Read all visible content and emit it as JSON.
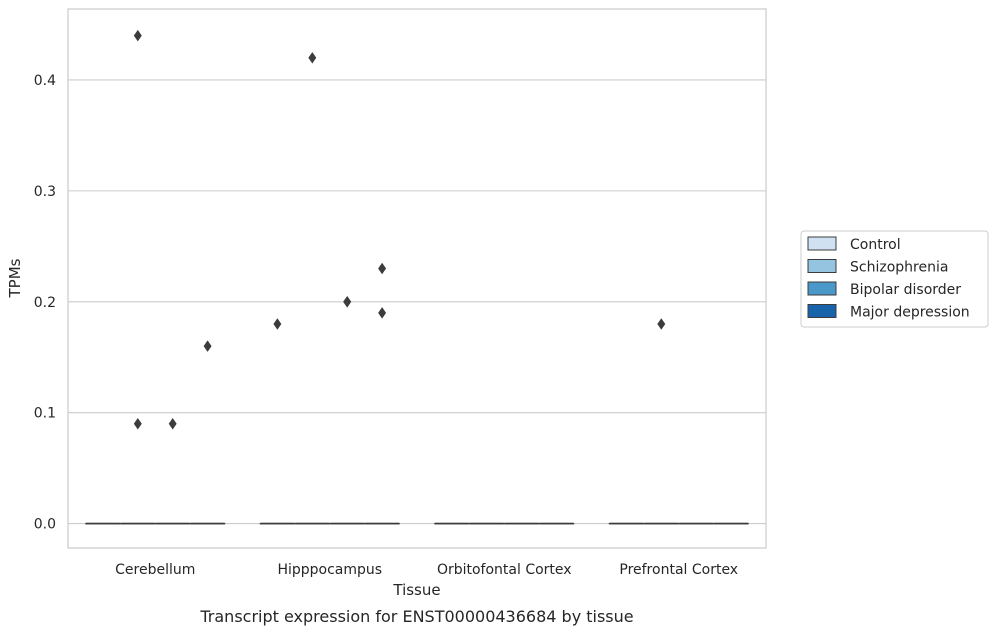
{
  "chart_data": {
    "type": "box",
    "title": "",
    "caption": "Transcript expression for ENST00000436684 by tissue",
    "xlabel": "Tissue",
    "ylabel": "TPMs",
    "ylim": [
      -0.022,
      0.464
    ],
    "yticks": [
      0.0,
      0.1,
      0.2,
      0.3,
      0.4
    ],
    "ytick_labels": [
      "0.0",
      "0.1",
      "0.2",
      "0.3",
      "0.4"
    ],
    "grid": "horizontal",
    "categories": [
      "Cerebellum",
      "Hipppocampus",
      "Orbitofontal Cortex",
      "Prefrontal Cortex"
    ],
    "legend_position": "right",
    "series": [
      {
        "name": "Control",
        "color": "#d0e1f2",
        "boxes": [
          {
            "median": 0.0,
            "q1": 0.0,
            "q3": 0.0,
            "whisker_low": 0.0,
            "whisker_high": 0.0
          },
          {
            "median": 0.0,
            "q1": 0.0,
            "q3": 0.0,
            "whisker_low": 0.0,
            "whisker_high": 0.0
          },
          {
            "median": 0.0,
            "q1": 0.0,
            "q3": 0.0,
            "whisker_low": 0.0,
            "whisker_high": 0.0
          },
          {
            "median": 0.0,
            "q1": 0.0,
            "q3": 0.0,
            "whisker_low": 0.0,
            "whisker_high": 0.0
          }
        ],
        "outliers": [
          [],
          [
            0.18
          ],
          [],
          []
        ]
      },
      {
        "name": "Schizophrenia",
        "color": "#94c4df",
        "boxes": [
          {
            "median": 0.0,
            "q1": 0.0,
            "q3": 0.0,
            "whisker_low": 0.0,
            "whisker_high": 0.0
          },
          {
            "median": 0.0,
            "q1": 0.0,
            "q3": 0.0,
            "whisker_low": 0.0,
            "whisker_high": 0.0
          },
          {
            "median": 0.0,
            "q1": 0.0,
            "q3": 0.0,
            "whisker_low": 0.0,
            "whisker_high": 0.0
          },
          {
            "median": 0.0,
            "q1": 0.0,
            "q3": 0.0,
            "whisker_low": 0.0,
            "whisker_high": 0.0
          }
        ],
        "outliers": [
          [
            0.44,
            0.09
          ],
          [
            0.42
          ],
          [],
          [
            0.18
          ]
        ]
      },
      {
        "name": "Bipolar disorder",
        "color": "#4a98c9",
        "boxes": [
          {
            "median": 0.0,
            "q1": 0.0,
            "q3": 0.0,
            "whisker_low": 0.0,
            "whisker_high": 0.0
          },
          {
            "median": 0.0,
            "q1": 0.0,
            "q3": 0.0,
            "whisker_low": 0.0,
            "whisker_high": 0.0
          },
          {
            "median": 0.0,
            "q1": 0.0,
            "q3": 0.0,
            "whisker_low": 0.0,
            "whisker_high": 0.0
          },
          {
            "median": 0.0,
            "q1": 0.0,
            "q3": 0.0,
            "whisker_low": 0.0,
            "whisker_high": 0.0
          }
        ],
        "outliers": [
          [
            0.09
          ],
          [
            0.2,
            0.2
          ],
          [],
          []
        ]
      },
      {
        "name": "Major depression",
        "color": "#1764ab",
        "boxes": [
          {
            "median": 0.0,
            "q1": 0.0,
            "q3": 0.0,
            "whisker_low": 0.0,
            "whisker_high": 0.0
          },
          {
            "median": 0.0,
            "q1": 0.0,
            "q3": 0.0,
            "whisker_low": 0.0,
            "whisker_high": 0.0
          },
          {
            "median": 0.0,
            "q1": 0.0,
            "q3": 0.0,
            "whisker_low": 0.0,
            "whisker_high": 0.0
          },
          {
            "median": 0.0,
            "q1": 0.0,
            "q3": 0.0,
            "whisker_low": 0.0,
            "whisker_high": 0.0
          }
        ],
        "outliers": [
          [
            0.16
          ],
          [
            0.23,
            0.19
          ],
          [],
          []
        ]
      }
    ],
    "colors": {
      "grid": "#cccccc",
      "frame": "#cccccc",
      "text": "#262626",
      "marks": "#3c3c3c",
      "legend_border": "#cccccc"
    }
  }
}
